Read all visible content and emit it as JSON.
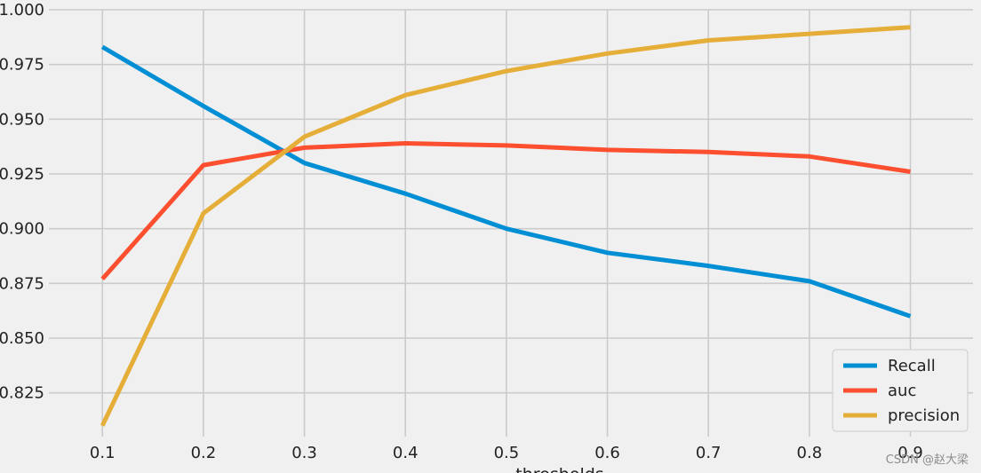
{
  "chart_data": {
    "type": "line",
    "title": "",
    "xlabel": "thresholds",
    "ylabel": "",
    "x": [
      0.1,
      0.2,
      0.3,
      0.4,
      0.5,
      0.6,
      0.7,
      0.8,
      0.9
    ],
    "x_ticks": [
      "0.1",
      "0.2",
      "0.3",
      "0.4",
      "0.5",
      "0.6",
      "0.7",
      "0.8",
      "0.9"
    ],
    "y_ticks": [
      "0.825",
      "0.850",
      "0.875",
      "0.900",
      "0.925",
      "0.950",
      "0.975",
      "1.000"
    ],
    "xlim": [
      0.047,
      0.962
    ],
    "ylim": [
      0.805,
      1.0
    ],
    "grid": true,
    "legend_position": "lower-right",
    "series": [
      {
        "name": "Recall",
        "color": "#008fd5",
        "values": [
          0.983,
          0.956,
          0.93,
          0.916,
          0.9,
          0.889,
          0.883,
          0.876,
          0.86
        ]
      },
      {
        "name": "auc",
        "color": "#fc4f30",
        "values": [
          0.877,
          0.929,
          0.937,
          0.939,
          0.938,
          0.936,
          0.935,
          0.933,
          0.926
        ]
      },
      {
        "name": "precision",
        "color": "#e5ae38",
        "values": [
          0.81,
          0.907,
          0.942,
          0.961,
          0.972,
          0.98,
          0.986,
          0.989,
          0.992
        ]
      }
    ]
  },
  "watermark": "CSDN @赵大梁"
}
